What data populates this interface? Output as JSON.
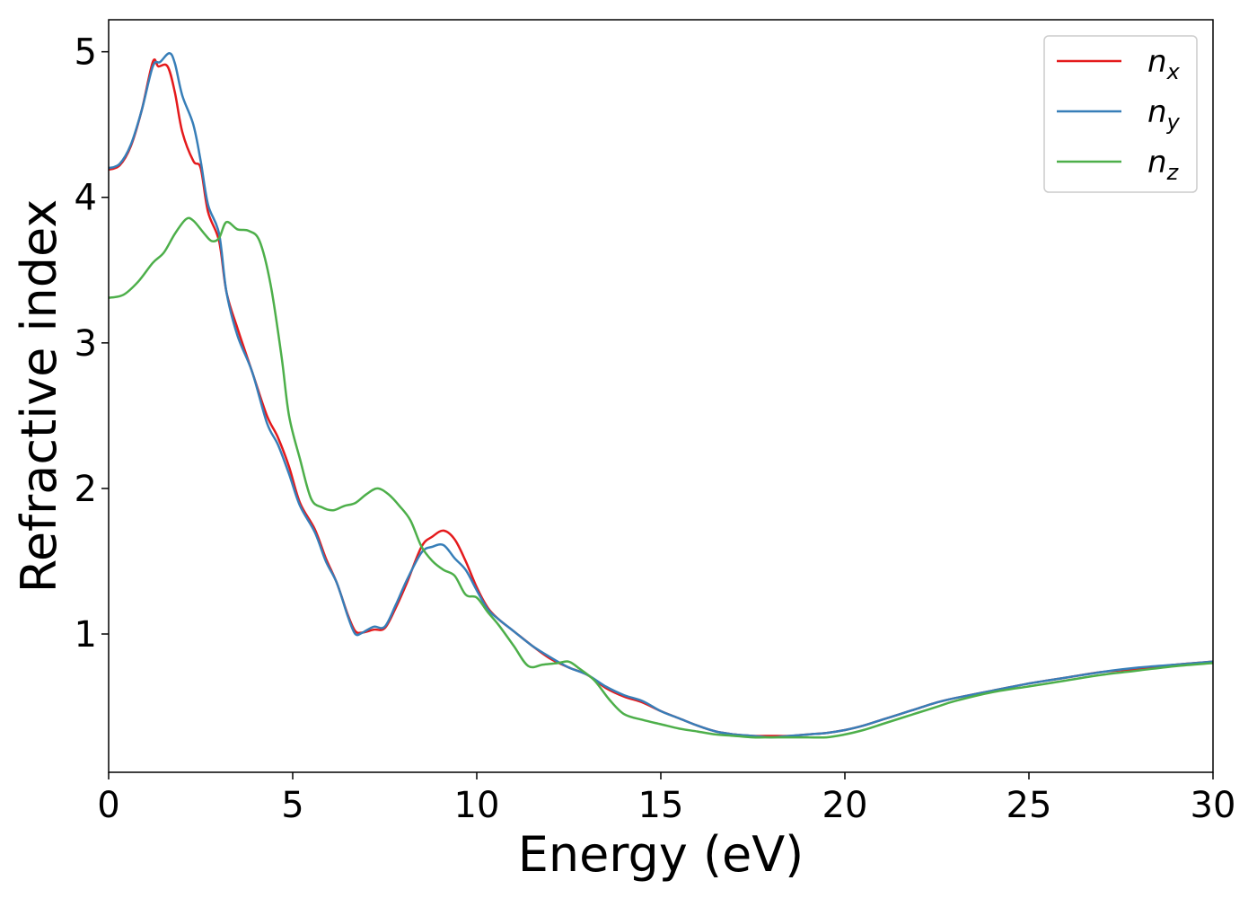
{
  "chart_data": {
    "type": "line",
    "title": "",
    "xlabel": "Energy (eV)",
    "ylabel": "Refractive index",
    "xlim": [
      0,
      30
    ],
    "ylim": [
      0.05,
      5.22
    ],
    "xticks": [
      0,
      5,
      10,
      15,
      20,
      25,
      30
    ],
    "xtick_labels": [
      "0",
      "5",
      "10",
      "15",
      "20",
      "25",
      "30"
    ],
    "yticks": [
      1,
      2,
      3,
      4,
      5
    ],
    "ytick_labels": [
      "1",
      "2",
      "3",
      "4",
      "5"
    ],
    "grid": false,
    "legend_position": "top-right",
    "series": [
      {
        "name": "n",
        "subscript": "x",
        "color": "#e41a1c",
        "points": [
          [
            0,
            4.19
          ],
          [
            0.3,
            4.22
          ],
          [
            0.6,
            4.35
          ],
          [
            0.9,
            4.6
          ],
          [
            1.2,
            4.93
          ],
          [
            1.35,
            4.9
          ],
          [
            1.6,
            4.9
          ],
          [
            1.8,
            4.72
          ],
          [
            2.0,
            4.45
          ],
          [
            2.3,
            4.25
          ],
          [
            2.5,
            4.2
          ],
          [
            2.7,
            3.9
          ],
          [
            3.0,
            3.7
          ],
          [
            3.2,
            3.35
          ],
          [
            3.5,
            3.1
          ],
          [
            3.9,
            2.8
          ],
          [
            4.3,
            2.5
          ],
          [
            4.6,
            2.35
          ],
          [
            4.9,
            2.15
          ],
          [
            5.2,
            1.9
          ],
          [
            5.6,
            1.72
          ],
          [
            5.9,
            1.52
          ],
          [
            6.2,
            1.35
          ],
          [
            6.5,
            1.13
          ],
          [
            6.7,
            1.02
          ],
          [
            6.9,
            1.01
          ],
          [
            7.2,
            1.03
          ],
          [
            7.5,
            1.04
          ],
          [
            7.8,
            1.18
          ],
          [
            8.1,
            1.35
          ],
          [
            8.5,
            1.6
          ],
          [
            8.8,
            1.67
          ],
          [
            9.1,
            1.71
          ],
          [
            9.4,
            1.65
          ],
          [
            9.7,
            1.5
          ],
          [
            10.0,
            1.32
          ],
          [
            10.3,
            1.18
          ],
          [
            10.6,
            1.1
          ],
          [
            11.0,
            1.02
          ],
          [
            11.5,
            0.92
          ],
          [
            12.0,
            0.83
          ],
          [
            12.5,
            0.77
          ],
          [
            13.0,
            0.72
          ],
          [
            13.5,
            0.63
          ],
          [
            14.0,
            0.57
          ],
          [
            14.5,
            0.53
          ],
          [
            15.0,
            0.47
          ],
          [
            15.5,
            0.42
          ],
          [
            16.0,
            0.37
          ],
          [
            16.5,
            0.33
          ],
          [
            17.0,
            0.31
          ],
          [
            17.5,
            0.3
          ],
          [
            18.0,
            0.3
          ],
          [
            18.5,
            0.3
          ],
          [
            19.0,
            0.31
          ],
          [
            19.5,
            0.32
          ],
          [
            20.0,
            0.34
          ],
          [
            20.5,
            0.37
          ],
          [
            21.0,
            0.41
          ],
          [
            21.5,
            0.45
          ],
          [
            22.0,
            0.49
          ],
          [
            22.5,
            0.53
          ],
          [
            23.0,
            0.56
          ],
          [
            24.0,
            0.61
          ],
          [
            25.0,
            0.66
          ],
          [
            26.0,
            0.7
          ],
          [
            27.0,
            0.74
          ],
          [
            28.0,
            0.76
          ],
          [
            29.0,
            0.79
          ],
          [
            30.0,
            0.81
          ]
        ]
      },
      {
        "name": "n",
        "subscript": "y",
        "color": "#377eb8",
        "points": [
          [
            0,
            4.2
          ],
          [
            0.3,
            4.23
          ],
          [
            0.6,
            4.36
          ],
          [
            0.9,
            4.6
          ],
          [
            1.2,
            4.9
          ],
          [
            1.4,
            4.93
          ],
          [
            1.65,
            4.99
          ],
          [
            1.8,
            4.92
          ],
          [
            2.0,
            4.7
          ],
          [
            2.3,
            4.5
          ],
          [
            2.5,
            4.25
          ],
          [
            2.7,
            3.95
          ],
          [
            3.0,
            3.75
          ],
          [
            3.2,
            3.35
          ],
          [
            3.5,
            3.05
          ],
          [
            3.9,
            2.8
          ],
          [
            4.3,
            2.45
          ],
          [
            4.6,
            2.3
          ],
          [
            4.9,
            2.1
          ],
          [
            5.2,
            1.88
          ],
          [
            5.6,
            1.7
          ],
          [
            5.9,
            1.5
          ],
          [
            6.2,
            1.35
          ],
          [
            6.5,
            1.12
          ],
          [
            6.7,
            1.0
          ],
          [
            6.9,
            1.01
          ],
          [
            7.2,
            1.05
          ],
          [
            7.5,
            1.05
          ],
          [
            7.8,
            1.2
          ],
          [
            8.1,
            1.37
          ],
          [
            8.5,
            1.56
          ],
          [
            8.8,
            1.6
          ],
          [
            9.1,
            1.61
          ],
          [
            9.4,
            1.52
          ],
          [
            9.7,
            1.44
          ],
          [
            10.0,
            1.3
          ],
          [
            10.3,
            1.17
          ],
          [
            10.6,
            1.1
          ],
          [
            11.0,
            1.02
          ],
          [
            11.5,
            0.92
          ],
          [
            12.0,
            0.84
          ],
          [
            12.5,
            0.77
          ],
          [
            13.0,
            0.72
          ],
          [
            13.5,
            0.64
          ],
          [
            14.0,
            0.58
          ],
          [
            14.5,
            0.54
          ],
          [
            15.0,
            0.47
          ],
          [
            15.5,
            0.42
          ],
          [
            16.0,
            0.37
          ],
          [
            16.5,
            0.33
          ],
          [
            17.0,
            0.31
          ],
          [
            17.5,
            0.3
          ],
          [
            18.0,
            0.29
          ],
          [
            18.5,
            0.3
          ],
          [
            19.0,
            0.31
          ],
          [
            19.5,
            0.32
          ],
          [
            20.0,
            0.34
          ],
          [
            20.5,
            0.37
          ],
          [
            21.0,
            0.41
          ],
          [
            21.5,
            0.45
          ],
          [
            22.0,
            0.49
          ],
          [
            22.5,
            0.53
          ],
          [
            23.0,
            0.56
          ],
          [
            24.0,
            0.61
          ],
          [
            25.0,
            0.66
          ],
          [
            26.0,
            0.7
          ],
          [
            27.0,
            0.74
          ],
          [
            28.0,
            0.77
          ],
          [
            29.0,
            0.79
          ],
          [
            30.0,
            0.81
          ]
        ]
      },
      {
        "name": "n",
        "subscript": "z",
        "color": "#4daf4a",
        "points": [
          [
            0,
            3.31
          ],
          [
            0.4,
            3.33
          ],
          [
            0.8,
            3.42
          ],
          [
            1.2,
            3.55
          ],
          [
            1.5,
            3.62
          ],
          [
            1.8,
            3.75
          ],
          [
            2.1,
            3.85
          ],
          [
            2.3,
            3.84
          ],
          [
            2.6,
            3.75
          ],
          [
            2.8,
            3.7
          ],
          [
            3.0,
            3.72
          ],
          [
            3.2,
            3.83
          ],
          [
            3.5,
            3.78
          ],
          [
            3.8,
            3.77
          ],
          [
            4.1,
            3.7
          ],
          [
            4.4,
            3.4
          ],
          [
            4.7,
            2.9
          ],
          [
            4.9,
            2.5
          ],
          [
            5.2,
            2.2
          ],
          [
            5.5,
            1.93
          ],
          [
            5.8,
            1.87
          ],
          [
            6.1,
            1.85
          ],
          [
            6.4,
            1.88
          ],
          [
            6.7,
            1.9
          ],
          [
            7.0,
            1.96
          ],
          [
            7.3,
            2.0
          ],
          [
            7.6,
            1.96
          ],
          [
            7.9,
            1.88
          ],
          [
            8.2,
            1.78
          ],
          [
            8.5,
            1.6
          ],
          [
            8.8,
            1.5
          ],
          [
            9.1,
            1.44
          ],
          [
            9.4,
            1.4
          ],
          [
            9.7,
            1.27
          ],
          [
            10.0,
            1.25
          ],
          [
            10.3,
            1.15
          ],
          [
            10.6,
            1.06
          ],
          [
            11.0,
            0.92
          ],
          [
            11.4,
            0.78
          ],
          [
            11.8,
            0.79
          ],
          [
            12.2,
            0.8
          ],
          [
            12.5,
            0.81
          ],
          [
            12.8,
            0.76
          ],
          [
            13.2,
            0.68
          ],
          [
            13.6,
            0.55
          ],
          [
            14.0,
            0.45
          ],
          [
            14.5,
            0.41
          ],
          [
            15.0,
            0.38
          ],
          [
            15.5,
            0.35
          ],
          [
            16.0,
            0.33
          ],
          [
            16.5,
            0.31
          ],
          [
            17.0,
            0.3
          ],
          [
            17.5,
            0.29
          ],
          [
            18.0,
            0.29
          ],
          [
            18.5,
            0.29
          ],
          [
            19.0,
            0.29
          ],
          [
            19.5,
            0.29
          ],
          [
            20.0,
            0.31
          ],
          [
            20.5,
            0.34
          ],
          [
            21.0,
            0.38
          ],
          [
            21.5,
            0.42
          ],
          [
            22.0,
            0.46
          ],
          [
            22.5,
            0.5
          ],
          [
            23.0,
            0.54
          ],
          [
            24.0,
            0.6
          ],
          [
            25.0,
            0.64
          ],
          [
            26.0,
            0.68
          ],
          [
            27.0,
            0.72
          ],
          [
            28.0,
            0.75
          ],
          [
            29.0,
            0.78
          ],
          [
            30.0,
            0.8
          ]
        ]
      }
    ]
  }
}
